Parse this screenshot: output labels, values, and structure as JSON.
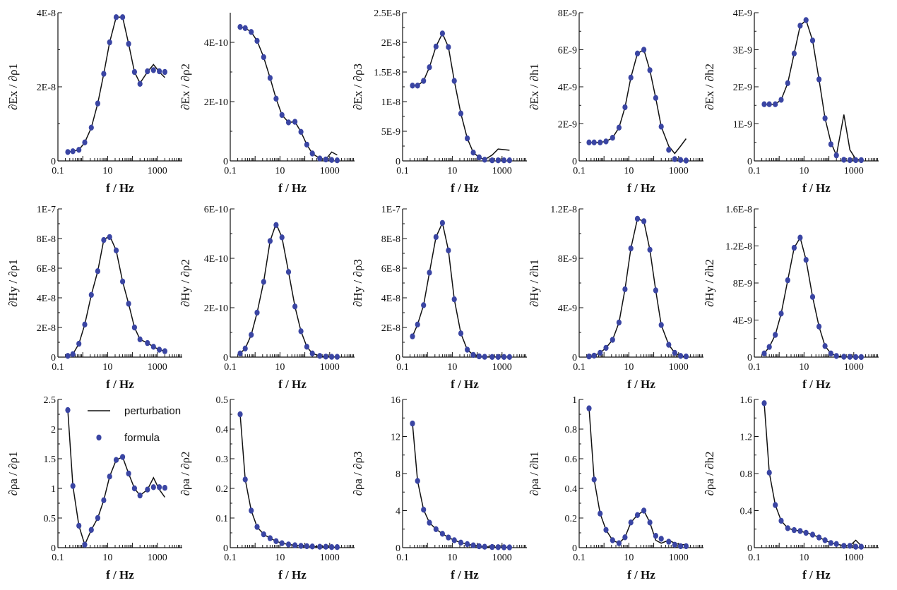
{
  "figure": {
    "colors": {
      "line": "#111111",
      "marker": "#3a45a3",
      "axis": "#111111"
    },
    "legend": {
      "line_label": "perturbation",
      "marker_label": "formula",
      "panel": 10,
      "placement": "top-right"
    }
  },
  "chart_data": [
    {
      "type": "line",
      "xscale": "log",
      "xlim": [
        0.1,
        10000
      ],
      "xticks": [
        "0.1",
        "10",
        "1000"
      ],
      "xlabel": "f / Hz",
      "ylabel": "∂Ex / ∂ρ1",
      "ylim": [
        0,
        4e-08
      ],
      "yticks": [
        "0",
        "2E-8",
        "4E-8"
      ],
      "x": [
        0.25,
        0.4,
        0.7,
        1.2,
        2.2,
        4,
        7,
        12,
        22,
        40,
        70,
        120,
        200,
        400,
        700,
        1200,
        2000
      ],
      "line": [
        2.4e-09,
        2.6e-09,
        3e-09,
        5e-09,
        9e-09,
        1.55e-08,
        2.35e-08,
        3.2e-08,
        3.88e-08,
        3.88e-08,
        3.16e-08,
        2.4e-08,
        2.1e-08,
        2.4e-08,
        2.6e-08,
        2.4e-08,
        2.25e-08
      ],
      "markers": [
        2.4e-09,
        2.6e-09,
        3e-09,
        5e-09,
        9e-09,
        1.55e-08,
        2.35e-08,
        3.2e-08,
        3.88e-08,
        3.88e-08,
        3.16e-08,
        2.4e-08,
        2.08e-08,
        2.42e-08,
        2.45e-08,
        2.42e-08,
        2.4e-08
      ]
    },
    {
      "type": "line",
      "xscale": "log",
      "xlim": [
        0.1,
        10000
      ],
      "xticks": [
        "0.1",
        "10",
        "1000"
      ],
      "xlabel": "f / Hz",
      "ylabel": "∂Ex / ∂ρ2",
      "ylim": [
        0,
        5e-10
      ],
      "yticks": [
        "0",
        "2E-10",
        "4E-10"
      ],
      "x": [
        0.25,
        0.4,
        0.7,
        1.2,
        2.2,
        4,
        7,
        12,
        22,
        40,
        70,
        120,
        200,
        400,
        700,
        1200,
        2000
      ],
      "line": [
        4.52e-10,
        4.48e-10,
        4.35e-10,
        4.05e-10,
        3.5e-10,
        2.8e-10,
        2.1e-10,
        1.55e-10,
        1.3e-10,
        1.32e-10,
        9.8e-11,
        5.5e-11,
        2.5e-11,
        8e-12,
        5e-12,
        3e-11,
        2e-11
      ],
      "markers": [
        4.52e-10,
        4.48e-10,
        4.35e-10,
        4.05e-10,
        3.5e-10,
        2.8e-10,
        2.1e-10,
        1.55e-10,
        1.3e-10,
        1.32e-10,
        9.8e-11,
        5.5e-11,
        2.5e-11,
        8e-12,
        5e-12,
        3e-12,
        2e-12
      ]
    },
    {
      "type": "line",
      "xscale": "log",
      "xlim": [
        0.1,
        10000
      ],
      "xticks": [
        "0.1",
        "10",
        "1000"
      ],
      "xlabel": "f / Hz",
      "ylabel": "∂Ex / ∂ρ3",
      "ylim": [
        0,
        2.5e-08
      ],
      "yticks": [
        "0",
        "5E-9",
        "1E-8",
        "1.5E-8",
        "2E-8",
        "2.5E-8"
      ],
      "x": [
        0.25,
        0.4,
        0.7,
        1.2,
        2.2,
        4,
        7,
        12,
        22,
        40,
        70,
        120,
        200,
        400,
        700,
        1200,
        2000
      ],
      "line": [
        1.27e-08,
        1.27e-08,
        1.35e-08,
        1.58e-08,
        1.93e-08,
        2.15e-08,
        1.92e-08,
        1.35e-08,
        8e-09,
        3.8e-09,
        1.4e-09,
        6e-10,
        2e-10,
        1e-09,
        2e-09,
        1.9e-09,
        1.8e-09
      ],
      "markers": [
        1.27e-08,
        1.27e-08,
        1.35e-08,
        1.58e-08,
        1.93e-08,
        2.15e-08,
        1.92e-08,
        1.35e-08,
        8e-09,
        3.8e-09,
        1.4e-09,
        6e-10,
        2e-10,
        1e-10,
        1e-10,
        1e-10,
        1e-10
      ]
    },
    {
      "type": "line",
      "xscale": "log",
      "xlim": [
        0.1,
        10000
      ],
      "xticks": [
        "0.1",
        "10",
        "1000"
      ],
      "xlabel": "f / Hz",
      "ylabel": "∂Ex / ∂h1",
      "ylim": [
        0,
        8e-09
      ],
      "yticks": [
        "0",
        "2E-9",
        "4E-9",
        "6E-9",
        "8E-9"
      ],
      "x": [
        0.25,
        0.4,
        0.7,
        1.2,
        2.2,
        4,
        7,
        12,
        22,
        40,
        70,
        120,
        200,
        400,
        700,
        1200,
        2000
      ],
      "line": [
        1e-09,
        1e-09,
        1e-09,
        1.05e-09,
        1.25e-09,
        1.8e-09,
        2.9e-09,
        4.5e-09,
        5.8e-09,
        6e-09,
        4.9e-09,
        3.4e-09,
        1.85e-09,
        8e-10,
        4e-10,
        8e-10,
        1.2e-09
      ],
      "markers": [
        1e-09,
        1e-09,
        1e-09,
        1.05e-09,
        1.25e-09,
        1.8e-09,
        2.9e-09,
        4.5e-09,
        5.8e-09,
        6e-09,
        4.9e-09,
        3.4e-09,
        1.85e-09,
        6e-10,
        1e-10,
        5e-11,
        2e-11
      ]
    },
    {
      "type": "line",
      "xscale": "log",
      "xlim": [
        0.1,
        10000
      ],
      "xticks": [
        "0.1",
        "10",
        "1000"
      ],
      "xlabel": "f / Hz",
      "ylabel": "∂Ex / ∂h2",
      "ylim": [
        0,
        4e-09
      ],
      "yticks": [
        "0",
        "1E-9",
        "2E-9",
        "3E-9",
        "4E-9"
      ],
      "x": [
        0.25,
        0.4,
        0.7,
        1.2,
        2.2,
        4,
        7,
        12,
        22,
        40,
        70,
        120,
        200,
        400,
        700,
        1200,
        2000
      ],
      "line": [
        1.53e-09,
        1.53e-09,
        1.53e-09,
        1.65e-09,
        2.1e-09,
        2.9e-09,
        3.65e-09,
        3.8e-09,
        3.25e-09,
        2.2e-09,
        1.15e-09,
        5e-10,
        1.5e-10,
        1.25e-09,
        3e-10,
        5e-11,
        2e-11
      ],
      "markers": [
        1.53e-09,
        1.53e-09,
        1.53e-09,
        1.65e-09,
        2.1e-09,
        2.9e-09,
        3.65e-09,
        3.8e-09,
        3.25e-09,
        2.2e-09,
        1.15e-09,
        4.5e-10,
        1.5e-10,
        3e-11,
        2e-11,
        2e-11,
        2e-11
      ]
    },
    {
      "type": "line",
      "xscale": "log",
      "xlim": [
        0.1,
        10000
      ],
      "xticks": [
        "0.1",
        "10",
        "1000"
      ],
      "xlabel": "f / Hz",
      "ylabel": "∂Hy / ∂ρ1",
      "ylim": [
        0,
        1e-07
      ],
      "yticks": [
        "0",
        "2E-8",
        "4E-8",
        "6E-8",
        "8E-8",
        "1E-7"
      ],
      "x": [
        0.25,
        0.4,
        0.7,
        1.2,
        2.2,
        4,
        7,
        12,
        22,
        40,
        70,
        120,
        200,
        400,
        700,
        1200,
        2000
      ],
      "line": [
        8e-10,
        2e-09,
        9e-09,
        2.2e-08,
        4.2e-08,
        5.8e-08,
        7.9e-08,
        8.2e-08,
        7.2e-08,
        5.1e-08,
        3.6e-08,
        2e-08,
        1.2e-08,
        9.5e-09,
        7e-09,
        5e-09,
        4e-09
      ],
      "markers": [
        8e-10,
        2e-09,
        9e-09,
        2.2e-08,
        4.2e-08,
        5.8e-08,
        7.9e-08,
        8.1e-08,
        7.2e-08,
        5.1e-08,
        3.6e-08,
        2e-08,
        1.2e-08,
        9.5e-09,
        7e-09,
        5e-09,
        4e-09
      ]
    },
    {
      "type": "line",
      "xscale": "log",
      "xlim": [
        0.1,
        10000
      ],
      "xticks": [
        "0.1",
        "10",
        "1000"
      ],
      "xlabel": "f / Hz",
      "ylabel": "∂Hy / ∂ρ2",
      "ylim": [
        0,
        6e-10
      ],
      "yticks": [
        "0",
        "2E-10",
        "4E-10",
        "6E-10"
      ],
      "x": [
        0.25,
        0.4,
        0.7,
        1.2,
        2.2,
        4,
        7,
        12,
        22,
        40,
        70,
        120,
        200,
        400,
        700,
        1200,
        2000
      ],
      "line": [
        1.5e-11,
        3.5e-11,
        9e-11,
        1.8e-10,
        3.05e-10,
        4.7e-10,
        5.4e-10,
        4.85e-10,
        3.45e-10,
        2.05e-10,
        1.05e-10,
        4.2e-11,
        1.5e-11,
        5e-12,
        2e-12,
        1e-12,
        1e-12
      ],
      "markers": [
        1.5e-11,
        3.5e-11,
        9e-11,
        1.8e-10,
        3.05e-10,
        4.7e-10,
        5.35e-10,
        4.85e-10,
        3.45e-10,
        2.05e-10,
        1.05e-10,
        4.2e-11,
        1.5e-11,
        5e-12,
        2e-12,
        1e-12,
        1e-12
      ]
    },
    {
      "type": "line",
      "xscale": "log",
      "xlim": [
        0.1,
        10000
      ],
      "xticks": [
        "0.1",
        "10",
        "1000"
      ],
      "xlabel": "f / Hz",
      "ylabel": "∂Hy / ∂ρ3",
      "ylim": [
        0,
        1e-07
      ],
      "yticks": [
        "0",
        "2E-8",
        "4E-8",
        "6E-8",
        "8E-8",
        "1E-7"
      ],
      "x": [
        0.25,
        0.4,
        0.7,
        1.2,
        2.2,
        4,
        7,
        12,
        22,
        40,
        70,
        120,
        200,
        400,
        700,
        1200,
        2000
      ],
      "line": [
        1.4e-08,
        2.2e-08,
        3.5e-08,
        5.7e-08,
        8.1e-08,
        9.05e-08,
        7.2e-08,
        3.9e-08,
        1.6e-08,
        5e-09,
        1.5e-09,
        5e-10,
        2e-10,
        1e-10,
        1e-10,
        1e-10,
        1e-10
      ],
      "markers": [
        1.4e-08,
        2.2e-08,
        3.5e-08,
        5.7e-08,
        8.1e-08,
        9.05e-08,
        7.2e-08,
        3.9e-08,
        1.6e-08,
        5e-09,
        1.5e-09,
        5e-10,
        2e-10,
        1e-10,
        1e-10,
        1e-10,
        1e-10
      ]
    },
    {
      "type": "line",
      "xscale": "log",
      "xlim": [
        0.1,
        10000
      ],
      "xticks": [
        "0.1",
        "10",
        "1000"
      ],
      "xlabel": "f / Hz",
      "ylabel": "∂Hy / ∂h1",
      "ylim": [
        0,
        1.2e-08
      ],
      "yticks": [
        "0",
        "4E-9",
        "8E-9",
        "1.2E-8"
      ],
      "x": [
        0.25,
        0.4,
        0.7,
        1.2,
        2.2,
        4,
        7,
        12,
        22,
        40,
        70,
        120,
        200,
        400,
        700,
        1200,
        2000
      ],
      "line": [
        5e-11,
        1.2e-10,
        3.5e-10,
        7.5e-10,
        1.4e-09,
        2.8e-09,
        5.5e-09,
        8.8e-09,
        1.12e-08,
        1.1e-08,
        8.7e-09,
        5.4e-09,
        2.6e-09,
        1e-09,
        3.5e-10,
        1e-10,
        5e-11
      ],
      "markers": [
        5e-11,
        1.2e-10,
        3.5e-10,
        7.5e-10,
        1.4e-09,
        2.8e-09,
        5.5e-09,
        8.8e-09,
        1.12e-08,
        1.1e-08,
        8.7e-09,
        5.4e-09,
        2.6e-09,
        1e-09,
        3.5e-10,
        1e-10,
        5e-11
      ]
    },
    {
      "type": "line",
      "xscale": "log",
      "xlim": [
        0.1,
        10000
      ],
      "xticks": [
        "0.1",
        "10",
        "1000"
      ],
      "xlabel": "f / Hz",
      "ylabel": "∂Hy / ∂h2",
      "ylim": [
        0,
        1.6e-08
      ],
      "yticks": [
        "0",
        "4E-9",
        "8E-9",
        "1.2E-8",
        "1.6E-8"
      ],
      "x": [
        0.25,
        0.4,
        0.7,
        1.2,
        2.2,
        4,
        7,
        12,
        22,
        40,
        70,
        120,
        200,
        400,
        700,
        1200,
        2000
      ],
      "line": [
        4e-10,
        1.1e-09,
        2.4e-09,
        4.7e-09,
        8.3e-09,
        1.18e-08,
        1.29e-08,
        1.05e-08,
        6.5e-09,
        3.3e-09,
        1.2e-09,
        4e-10,
        1.2e-10,
        4e-11,
        2e-11,
        1e-11,
        1e-11
      ],
      "markers": [
        4e-10,
        1.1e-09,
        2.4e-09,
        4.7e-09,
        8.3e-09,
        1.18e-08,
        1.29e-08,
        1.05e-08,
        6.5e-09,
        3.3e-09,
        1.2e-09,
        4e-10,
        1.2e-10,
        4e-11,
        2e-11,
        1e-11,
        1e-11
      ]
    },
    {
      "type": "line",
      "xscale": "log",
      "xlim": [
        0.1,
        10000
      ],
      "xticks": [
        "0.1",
        "10",
        "1000"
      ],
      "xlabel": "f / Hz",
      "ylabel": "∂ρa / ∂ρ1",
      "ylim": [
        0,
        2.5
      ],
      "yticks": [
        "0",
        "0.5",
        "1",
        "1.5",
        "2",
        "2.5"
      ],
      "x": [
        0.25,
        0.4,
        0.7,
        1.2,
        2.2,
        4,
        7,
        12,
        22,
        40,
        70,
        120,
        200,
        400,
        700,
        1200,
        2000
      ],
      "line": [
        2.32,
        1.04,
        0.37,
        0.05,
        0.3,
        0.5,
        0.8,
        1.2,
        1.48,
        1.53,
        1.25,
        1.0,
        0.88,
        0.98,
        1.18,
        0.98,
        0.85
      ],
      "markers": [
        2.32,
        1.04,
        0.37,
        0.05,
        0.3,
        0.5,
        0.8,
        1.2,
        1.48,
        1.53,
        1.25,
        1.0,
        0.88,
        0.98,
        1.02,
        1.02,
        1.01
      ]
    },
    {
      "type": "line",
      "xscale": "log",
      "xlim": [
        0.1,
        10000
      ],
      "xticks": [
        "0.1",
        "10",
        "1000"
      ],
      "xlabel": "f / Hz",
      "ylabel": "∂ρa / ∂ρ2",
      "ylim": [
        0,
        0.5
      ],
      "yticks": [
        "0",
        "0.1",
        "0.2",
        "0.3",
        "0.4",
        "0.5"
      ],
      "x": [
        0.25,
        0.4,
        0.7,
        1.2,
        2.2,
        4,
        7,
        12,
        22,
        40,
        70,
        120,
        200,
        400,
        700,
        1200,
        2000
      ],
      "line": [
        0.45,
        0.23,
        0.125,
        0.07,
        0.045,
        0.032,
        0.022,
        0.015,
        0.011,
        0.008,
        0.006,
        0.005,
        0.004,
        0.003,
        0.003,
        0.002,
        0.002
      ],
      "markers": [
        0.45,
        0.23,
        0.125,
        0.07,
        0.045,
        0.032,
        0.022,
        0.015,
        0.011,
        0.008,
        0.006,
        0.005,
        0.004,
        0.003,
        0.003,
        0.002,
        0.002
      ]
    },
    {
      "type": "line",
      "xscale": "log",
      "xlim": [
        0.1,
        10000
      ],
      "xticks": [
        "0.1",
        "10",
        "1000"
      ],
      "xlabel": "f / Hz",
      "ylabel": "∂ρa / ∂ρ3",
      "ylim": [
        0,
        16
      ],
      "yticks": [
        "0",
        "4",
        "8",
        "12",
        "16"
      ],
      "x": [
        0.25,
        0.4,
        0.7,
        1.2,
        2.2,
        4,
        7,
        12,
        22,
        40,
        70,
        120,
        200,
        400,
        700,
        1200,
        2000
      ],
      "line": [
        13.4,
        7.2,
        4.1,
        2.7,
        2.0,
        1.5,
        1.1,
        0.8,
        0.55,
        0.38,
        0.25,
        0.15,
        0.1,
        0.07,
        0.05,
        0.04,
        0.03
      ],
      "markers": [
        13.4,
        7.2,
        4.1,
        2.7,
        2.0,
        1.5,
        1.1,
        0.8,
        0.55,
        0.38,
        0.25,
        0.15,
        0.1,
        0.07,
        0.05,
        0.04,
        0.03
      ]
    },
    {
      "type": "line",
      "xscale": "log",
      "xlim": [
        0.1,
        10000
      ],
      "xticks": [
        "0.1",
        "10",
        "1000"
      ],
      "xlabel": "f / Hz",
      "ylabel": "∂ρa / ∂h1",
      "ylim": [
        0,
        1
      ],
      "yticks": [
        "0",
        "0.2",
        "0.4",
        "0.6",
        "0.8",
        "1"
      ],
      "x": [
        0.25,
        0.4,
        0.7,
        1.2,
        2.2,
        4,
        7,
        12,
        22,
        40,
        70,
        120,
        200,
        400,
        700,
        1200,
        2000
      ],
      "line": [
        0.94,
        0.46,
        0.23,
        0.12,
        0.05,
        0.03,
        0.07,
        0.17,
        0.22,
        0.25,
        0.17,
        0.05,
        0.03,
        0.05,
        0.03,
        0.02,
        0.02
      ],
      "markers": [
        0.94,
        0.46,
        0.23,
        0.12,
        0.05,
        0.03,
        0.07,
        0.17,
        0.22,
        0.25,
        0.17,
        0.08,
        0.06,
        0.04,
        0.02,
        0.01,
        0.01
      ]
    },
    {
      "type": "line",
      "xscale": "log",
      "xlim": [
        0.1,
        10000
      ],
      "xticks": [
        "0.1",
        "10",
        "1000"
      ],
      "xlabel": "f / Hz",
      "ylabel": "∂ρa / ∂h2",
      "ylim": [
        0,
        1.6
      ],
      "yticks": [
        "0",
        "0.4",
        "0.8",
        "1.2",
        "1.6"
      ],
      "x": [
        0.25,
        0.4,
        0.7,
        1.2,
        2.2,
        4,
        7,
        12,
        22,
        40,
        70,
        120,
        200,
        400,
        700,
        1200,
        2000
      ],
      "line": [
        1.56,
        0.81,
        0.46,
        0.29,
        0.21,
        0.19,
        0.18,
        0.16,
        0.14,
        0.11,
        0.08,
        0.05,
        0.04,
        0.02,
        0.02,
        0.08,
        0.02
      ],
      "markers": [
        1.56,
        0.81,
        0.46,
        0.29,
        0.21,
        0.19,
        0.18,
        0.16,
        0.14,
        0.11,
        0.08,
        0.05,
        0.04,
        0.02,
        0.02,
        0.01,
        0.01
      ]
    }
  ]
}
